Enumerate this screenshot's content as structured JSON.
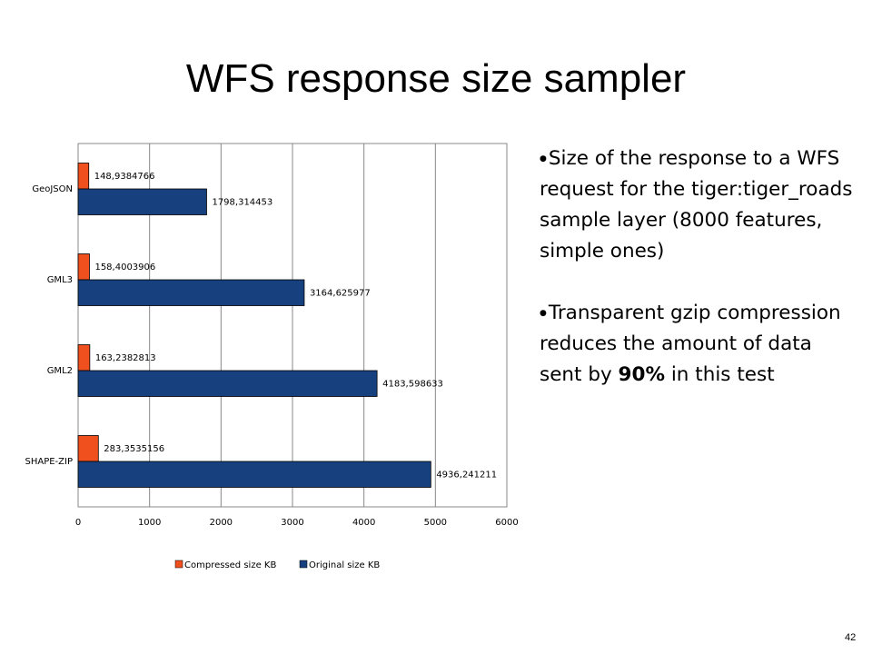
{
  "title": "WFS response size sampler",
  "chart_data": {
    "type": "hbar",
    "categories": [
      "GeoJSON",
      "GML3",
      "GML2",
      "SHAPE-ZIP"
    ],
    "series": [
      {
        "name": "Compressed size KB",
        "color": "#f0501e",
        "values": [
          148.9384766,
          158.4003906,
          163.2382813,
          283.3535156
        ],
        "value_labels": [
          "148,9384766",
          "158,4003906",
          "163,2382813",
          "283,3535156"
        ]
      },
      {
        "name": "Original size KB",
        "color": "#17407e",
        "values": [
          1798.314453,
          3164.625977,
          4183.598633,
          4936.241211
        ],
        "value_labels": [
          "1798,314453",
          "3164,625977",
          "4183,598633",
          "4936,241211"
        ]
      }
    ],
    "xlim": [
      0,
      6000
    ],
    "xticks": [
      0,
      1000,
      2000,
      3000,
      4000,
      5000,
      6000
    ],
    "grid": true,
    "legend": "bottom"
  },
  "bullets": [
    {
      "parts": [
        "Size of the response to a WFS request for the tiger:tiger_roads sample layer (8000 features, simple ones)"
      ]
    },
    {
      "parts": [
        "Transparent gzip compression reduces the amount of data sent by ",
        "90%",
        " in this test"
      ]
    }
  ],
  "page_number": "42"
}
